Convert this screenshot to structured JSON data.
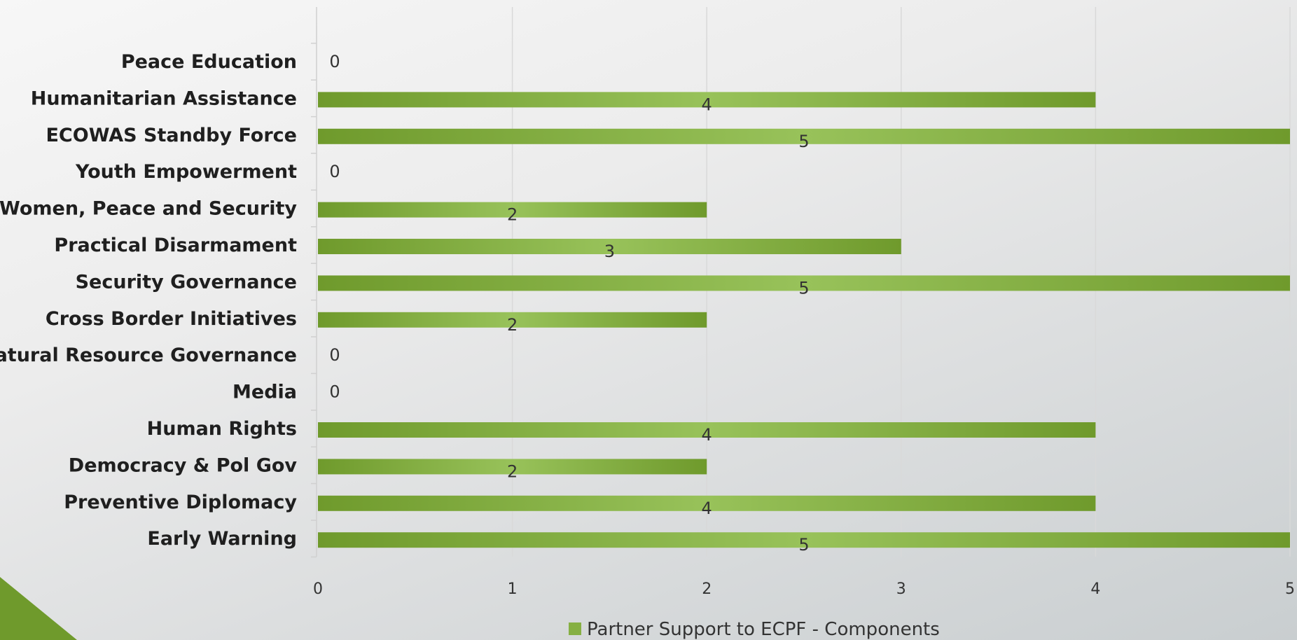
{
  "chart_data": {
    "type": "bar",
    "orientation": "horizontal",
    "categories": [
      "Peace Education",
      "Humanitarian Assistance",
      "ECOWAS Standby Force",
      "Youth Empowerment",
      "Women, Peace and Security",
      "Practical Disarmament",
      "Security Governance",
      "Cross Border Initiatives",
      "Natural Resource Governance",
      "Media",
      "Human Rights",
      "Democracy & Pol Gov",
      "Preventive Diplomacy",
      "Early Warning"
    ],
    "series": [
      {
        "name": "Partner Support to ECPF - Components",
        "values": [
          0,
          4,
          5,
          0,
          2,
          3,
          5,
          2,
          0,
          0,
          4,
          2,
          4,
          5
        ]
      }
    ],
    "xlim": [
      0,
      5
    ],
    "xticks": [
      "0",
      "1",
      "2",
      "3",
      "4",
      "5"
    ],
    "grid": true,
    "legend": "bottom",
    "colors": {
      "bar": "#86b043",
      "bar_dark": "#6f9a2c",
      "bar_light": "#98c25a",
      "grid": "#d9d9d9"
    }
  }
}
